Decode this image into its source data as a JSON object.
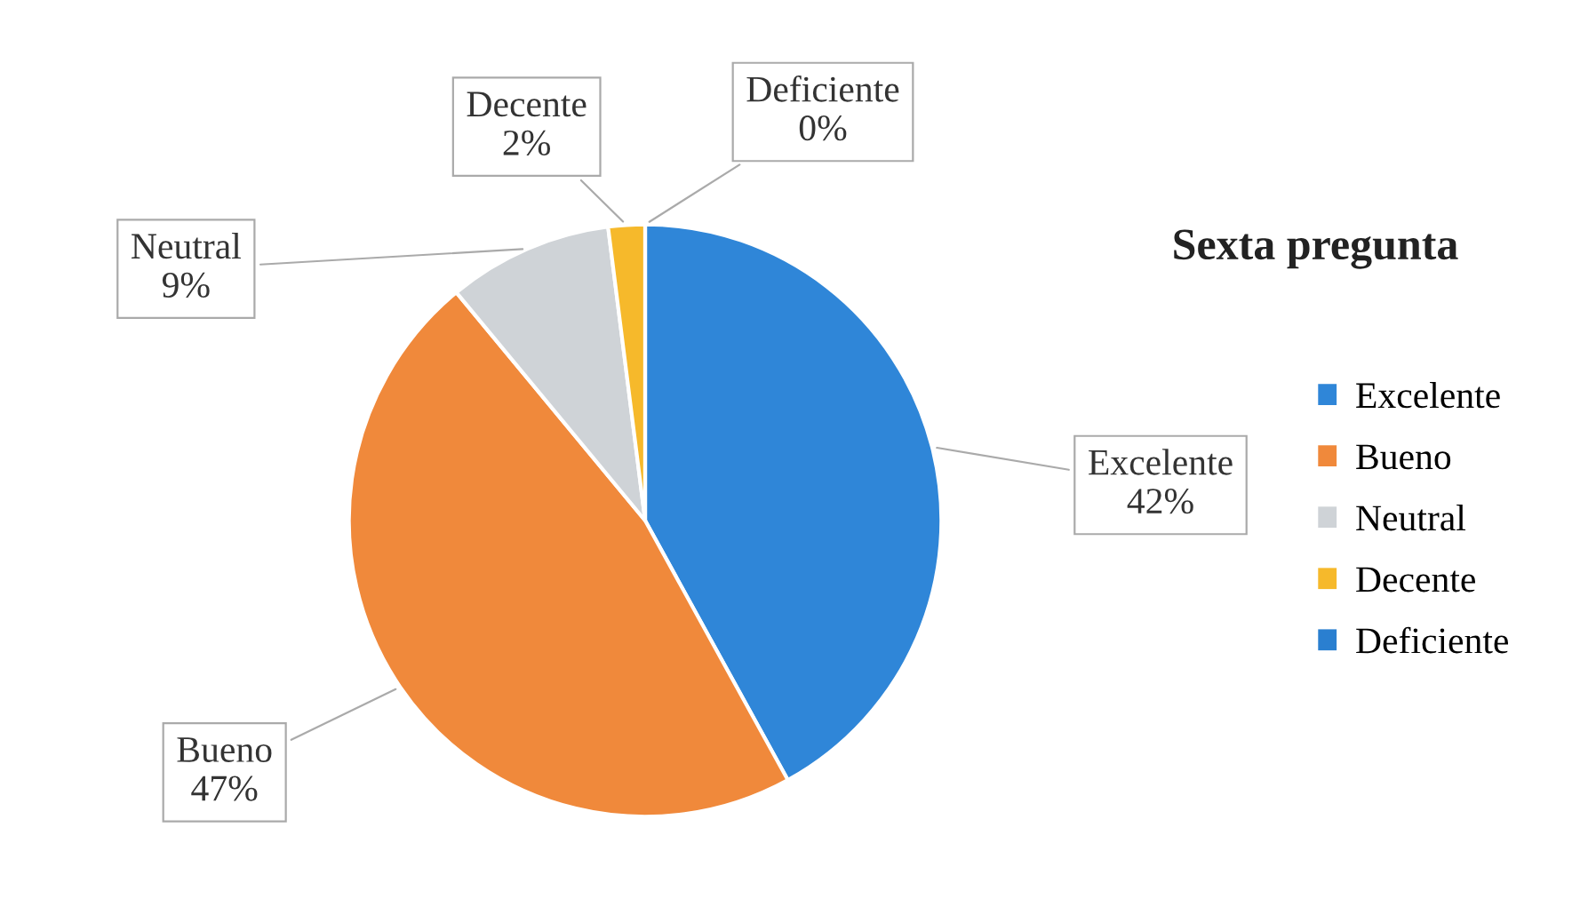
{
  "chart_data": {
    "type": "pie",
    "title": "Sexta pregunta",
    "categories": [
      "Excelente",
      "Bueno",
      "Neutral",
      "Decente",
      "Deficiente"
    ],
    "values": [
      42,
      47,
      9,
      2,
      0
    ],
    "value_labels": [
      "42%",
      "47%",
      "9%",
      "2%",
      "0%"
    ],
    "colors": [
      "#2f86d8",
      "#f0893b",
      "#cfd3d7",
      "#f6b92b",
      "#2a7fd0"
    ],
    "legend": "right"
  }
}
